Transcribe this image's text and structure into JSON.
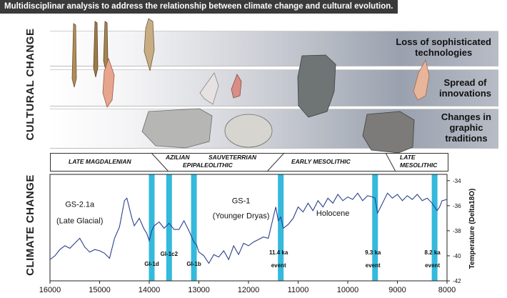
{
  "title": "Multidisciplinar analysis to address the relationship between climate change and cultural evolution.",
  "labels": {
    "cultural": "CULTURAL CHANGE",
    "climate": "CLIMATE CHANGE"
  },
  "bands": [
    {
      "lines": [
        "Loss of sophisticated",
        "technologies"
      ]
    },
    {
      "lines": [
        "Spread of",
        "innovations"
      ]
    },
    {
      "lines": [
        "Changes in",
        "graphic",
        "traditions"
      ]
    }
  ],
  "periods": [
    {
      "text": "LATE MAGDALENIAN"
    },
    {
      "text": "AZILIAN"
    },
    {
      "text": "SAUVETERRIAN"
    },
    {
      "text": "EPIPALEOLITHIC"
    },
    {
      "text": "EARLY MESOLITHIC"
    },
    {
      "text": "LATE"
    },
    {
      "text": "MESOLITHIC"
    }
  ],
  "chart_data": {
    "type": "line",
    "xlabel": "",
    "ylabel": "Temperature (Delta18O)",
    "xlim": [
      16000,
      8000
    ],
    "ylim": [
      -42,
      -33.5
    ],
    "x_ticks": [
      16000,
      15000,
      14000,
      13000,
      12000,
      11000,
      10000,
      9000,
      8000
    ],
    "y_ticks": [
      -34,
      -36,
      -38,
      -40,
      -42
    ],
    "series": [
      {
        "x": [
          16000,
          15900,
          15800,
          15700,
          15600,
          15500,
          15400,
          15300,
          15200,
          15100,
          15000,
          14900,
          14800,
          14700,
          14600,
          14500,
          14450,
          14400,
          14350,
          14300,
          14200,
          14100,
          14050,
          14000,
          13950,
          13900,
          13800,
          13700,
          13600,
          13500,
          13400,
          13300,
          13200,
          13100,
          13050,
          13000,
          12900,
          12800,
          12700,
          12600,
          12500,
          12400,
          12300,
          12200,
          12100,
          12000,
          11900,
          11800,
          11700,
          11600,
          11500,
          11450,
          11400,
          11350,
          11300,
          11200,
          11100,
          11000,
          10900,
          10800,
          10700,
          10600,
          10500,
          10400,
          10300,
          10200,
          10100,
          10000,
          9900,
          9800,
          9700,
          9600,
          9500,
          9450,
          9400,
          9350,
          9300,
          9200,
          9100,
          9000,
          8900,
          8800,
          8700,
          8600,
          8500,
          8400,
          8300,
          8250,
          8200,
          8150,
          8100,
          8000
        ],
        "y": [
          -40.3,
          -40.0,
          -39.5,
          -39.2,
          -39.4,
          -39.0,
          -38.6,
          -39.3,
          -39.7,
          -39.5,
          -39.6,
          -39.8,
          -40.2,
          -38.6,
          -37.7,
          -35.6,
          -35.4,
          -36.2,
          -37.0,
          -37.6,
          -37.0,
          -37.9,
          -38.2,
          -38.8,
          -38.0,
          -37.6,
          -37.3,
          -37.8,
          -37.4,
          -37.9,
          -37.9,
          -37.2,
          -38.0,
          -38.9,
          -39.1,
          -39.7,
          -40.0,
          -40.6,
          -39.9,
          -40.1,
          -39.6,
          -40.3,
          -39.2,
          -39.9,
          -39.0,
          -39.2,
          -38.9,
          -38.7,
          -38.5,
          -38.6,
          -36.9,
          -36.1,
          -37.2,
          -36.9,
          -37.8,
          -37.5,
          -37.0,
          -36.1,
          -36.5,
          -35.8,
          -36.4,
          -35.6,
          -36.1,
          -35.4,
          -35.8,
          -35.1,
          -35.6,
          -35.3,
          -35.5,
          -35.0,
          -35.6,
          -35.2,
          -35.3,
          -35.4,
          -36.6,
          -36.2,
          -35.8,
          -35.0,
          -35.4,
          -35.1,
          -35.6,
          -35.2,
          -35.5,
          -35.1,
          -35.6,
          -35.4,
          -35.8,
          -36.1,
          -36.4,
          -36.1,
          -35.6,
          -35.5
        ]
      }
    ],
    "events": [
      {
        "x": 13950,
        "label": "GI-1d"
      },
      {
        "x": 13600,
        "label": "GI-1c2"
      },
      {
        "x": 13100,
        "label": "GI-1b"
      },
      {
        "x": 11350,
        "label": "11.4 ka",
        "label2": "event"
      },
      {
        "x": 9450,
        "label": "9.3 ka",
        "label2": "event"
      },
      {
        "x": 8250,
        "label": "8.2 ka",
        "label2": "event"
      }
    ],
    "annotations": [
      {
        "x": 15400,
        "y": -36.1,
        "text": "GS-2.1a"
      },
      {
        "x": 15400,
        "y": -37.4,
        "text": "(Late Glacial)"
      },
      {
        "x": 12150,
        "y": -35.8,
        "text": "GS-1"
      },
      {
        "x": 12150,
        "y": -37.0,
        "text": "(Younger Dryas)"
      },
      {
        "x": 10300,
        "y": -36.8,
        "text": "Holocene"
      }
    ]
  }
}
